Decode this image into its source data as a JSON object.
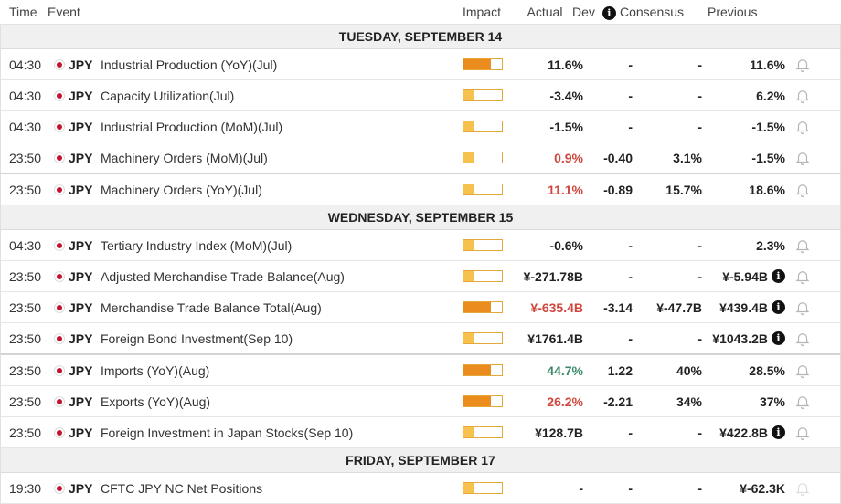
{
  "header": {
    "time": "Time",
    "event": "Event",
    "impact": "Impact",
    "actual": "Actual",
    "dev": "Dev",
    "consensus": "Consensus",
    "previous": "Previous"
  },
  "groups": [
    {
      "date": "TUESDAY, SEPTEMBER 14",
      "rows": [
        {
          "time": "04:30",
          "currency": "JPY",
          "event": "Industrial Production (YoY)(Jul)",
          "impact": "medium",
          "actual": "11.6%",
          "actual_color": "neutral",
          "dev": "-",
          "consensus": "-",
          "previous": "11.6%",
          "prev_info": false
        },
        {
          "time": "04:30",
          "currency": "JPY",
          "event": "Capacity Utilization(Jul)",
          "impact": "low",
          "actual": "-3.4%",
          "actual_color": "neutral",
          "dev": "-",
          "consensus": "-",
          "previous": "6.2%",
          "prev_info": false
        },
        {
          "time": "04:30",
          "currency": "JPY",
          "event": "Industrial Production (MoM)(Jul)",
          "impact": "low",
          "actual": "-1.5%",
          "actual_color": "neutral",
          "dev": "-",
          "consensus": "-",
          "previous": "-1.5%",
          "prev_info": false
        },
        {
          "time": "23:50",
          "currency": "JPY",
          "event": "Machinery Orders (MoM)(Jul)",
          "impact": "low",
          "actual": "0.9%",
          "actual_color": "red",
          "dev": "-0.40",
          "consensus": "3.1%",
          "previous": "-1.5%",
          "prev_info": false
        },
        {
          "time": "23:50",
          "currency": "JPY",
          "event": "Machinery Orders (YoY)(Jul)",
          "impact": "low",
          "actual": "11.1%",
          "actual_color": "red",
          "dev": "-0.89",
          "consensus": "15.7%",
          "previous": "18.6%",
          "prev_info": false
        }
      ]
    },
    {
      "date": "WEDNESDAY, SEPTEMBER 15",
      "rows": [
        {
          "time": "04:30",
          "currency": "JPY",
          "event": "Tertiary Industry Index (MoM)(Jul)",
          "impact": "low",
          "actual": "-0.6%",
          "actual_color": "neutral",
          "dev": "-",
          "consensus": "-",
          "previous": "2.3%",
          "prev_info": false
        },
        {
          "time": "23:50",
          "currency": "JPY",
          "event": "Adjusted Merchandise Trade Balance(Aug)",
          "impact": "low",
          "actual": "¥-271.78B",
          "actual_color": "neutral",
          "dev": "-",
          "consensus": "-",
          "previous": "¥-5.94B",
          "prev_info": true
        },
        {
          "time": "23:50",
          "currency": "JPY",
          "event": "Merchandise Trade Balance Total(Aug)",
          "impact": "medium",
          "actual": "¥-635.4B",
          "actual_color": "red",
          "dev": "-3.14",
          "consensus": "¥-47.7B",
          "previous": "¥439.4B",
          "prev_info": true
        },
        {
          "time": "23:50",
          "currency": "JPY",
          "event": "Foreign Bond Investment(Sep 10)",
          "impact": "low",
          "actual": "¥1761.4B",
          "actual_color": "neutral",
          "dev": "-",
          "consensus": "-",
          "previous": "¥1043.2B",
          "prev_info": true
        },
        {
          "time": "23:50",
          "currency": "JPY",
          "event": "Imports (YoY)(Aug)",
          "impact": "medium",
          "actual": "44.7%",
          "actual_color": "green",
          "dev": "1.22",
          "consensus": "40%",
          "previous": "28.5%",
          "prev_info": false
        },
        {
          "time": "23:50",
          "currency": "JPY",
          "event": "Exports (YoY)(Aug)",
          "impact": "medium",
          "actual": "26.2%",
          "actual_color": "red",
          "dev": "-2.21",
          "consensus": "34%",
          "previous": "37%",
          "prev_info": false
        },
        {
          "time": "23:50",
          "currency": "JPY",
          "event": "Foreign Investment in Japan Stocks(Sep 10)",
          "impact": "low",
          "actual": "¥128.7B",
          "actual_color": "neutral",
          "dev": "-",
          "consensus": "-",
          "previous": "¥422.8B",
          "prev_info": true
        }
      ]
    },
    {
      "date": "FRIDAY, SEPTEMBER 17",
      "rows": [
        {
          "time": "19:30",
          "currency": "JPY",
          "event": "CFTC JPY NC Net Positions",
          "impact": "low",
          "actual": "-",
          "actual_color": "neutral",
          "dev": "-",
          "consensus": "-",
          "previous": "¥-62.3K",
          "prev_info": false
        }
      ]
    }
  ],
  "colors": {
    "negative": "#d0473e",
    "positive": "#3c8c6b",
    "impact_low": "#f6c24d",
    "impact_medium": "#ea8d1e"
  },
  "icons": {
    "flag": "japan-flag-icon",
    "alert": "bell-icon",
    "info": "info-icon"
  }
}
